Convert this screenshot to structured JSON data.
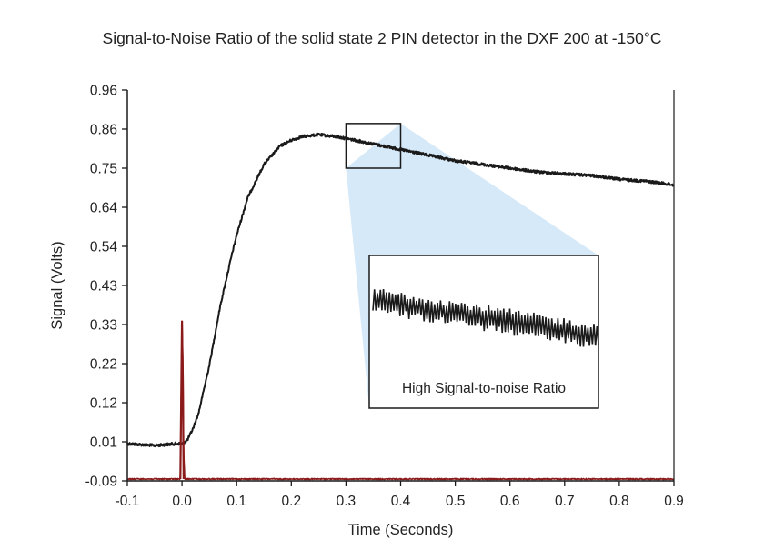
{
  "chart_data": {
    "type": "line",
    "title": "Signal-to-Noise Ratio of the solid state 2 PIN detector in the DXF 200 at -150°C",
    "xlabel": "Time (Seconds)",
    "ylabel": "Signal (Volts)",
    "xlim": [
      -0.1,
      0.9
    ],
    "ylim": [
      -0.09,
      0.96
    ],
    "x_ticks": [
      "-0.1",
      "0.0",
      "0.1",
      "0.2",
      "0.3",
      "0.4",
      "0.5",
      "0.6",
      "0.7",
      "0.8",
      "0.9"
    ],
    "y_ticks": [
      "0.96",
      "0.86",
      "0.75",
      "0.64",
      "0.54",
      "0.43",
      "0.33",
      "0.22",
      "0.12",
      "0.01",
      "-0.09"
    ],
    "grid": false,
    "series": [
      {
        "color": "#1a1a1a",
        "x": [
          -0.1,
          -0.05,
          -0.01,
          0.0,
          0.01,
          0.02,
          0.03,
          0.05,
          0.07,
          0.09,
          0.1,
          0.12,
          0.15,
          0.18,
          0.2,
          0.22,
          0.25,
          0.28,
          0.3,
          0.35,
          0.4,
          0.45,
          0.5,
          0.55,
          0.6,
          0.65,
          0.7,
          0.75,
          0.8,
          0.85,
          0.9
        ],
        "values": [
          0.01,
          0.005,
          0.01,
          0.01,
          0.02,
          0.05,
          0.09,
          0.22,
          0.38,
          0.51,
          0.57,
          0.67,
          0.76,
          0.81,
          0.825,
          0.835,
          0.84,
          0.835,
          0.83,
          0.815,
          0.8,
          0.785,
          0.77,
          0.76,
          0.75,
          0.74,
          0.735,
          0.73,
          0.72,
          0.715,
          0.705
        ]
      },
      {
        "color": "#8b1a1a",
        "x": [
          -0.1,
          -0.003,
          -0.002,
          0.0,
          0.002,
          0.003,
          0.005,
          0.9
        ],
        "values": [
          -0.085,
          -0.085,
          0.05,
          0.34,
          0.2,
          -0.01,
          -0.085,
          -0.085
        ]
      }
    ],
    "annotation": "High Signal-to-noise Ratio",
    "zoom_box_x": [
      0.3,
      0.4
    ],
    "zoom_box_y": [
      0.75,
      0.87
    ]
  }
}
